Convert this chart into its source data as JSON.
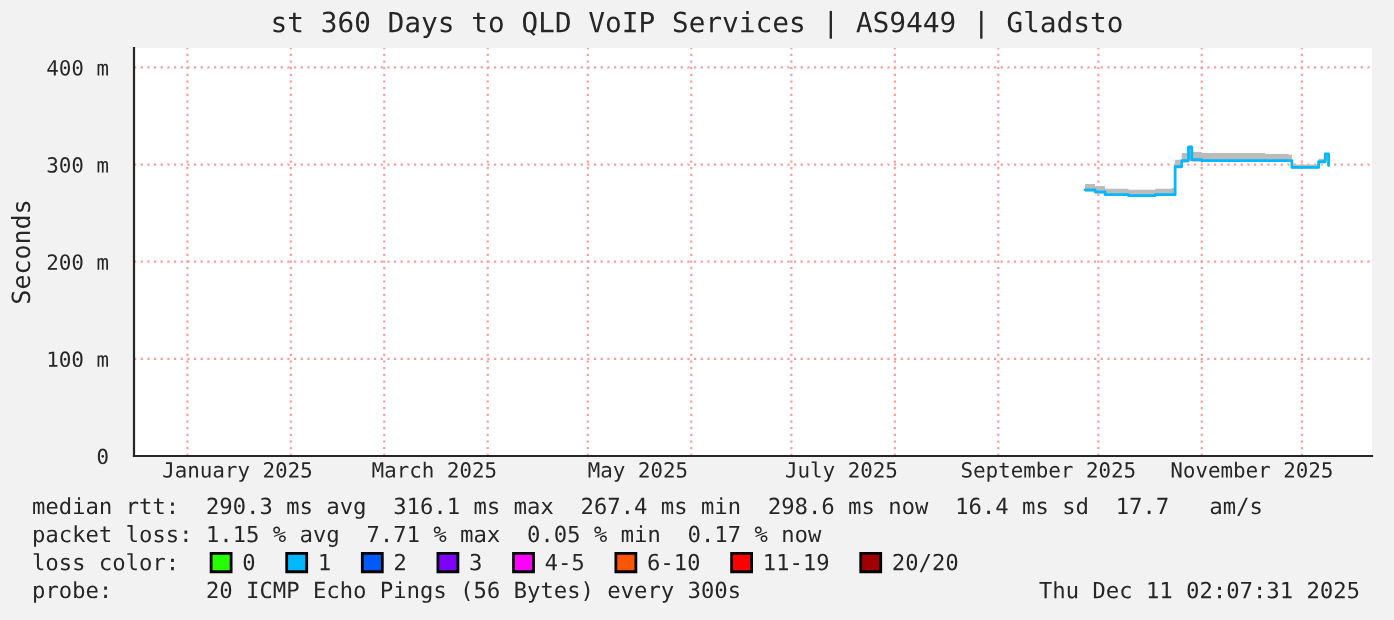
{
  "chart_data": {
    "type": "line",
    "title": "st 360 Days to QLD VoIP Services | AS9449 | Gladsto",
    "ylabel": "Seconds",
    "x": [
      "2025-09-27",
      "2025-09-30",
      "2025-10-03",
      "2025-10-10",
      "2025-10-18",
      "2025-10-23",
      "2025-10-24",
      "2025-10-26",
      "2025-10-28",
      "2025-10-29",
      "2025-11-01",
      "2025-11-10",
      "2025-11-20",
      "2025-11-27",
      "2025-11-28",
      "2025-12-05",
      "2025-12-06",
      "2025-12-08",
      "2025-12-09"
    ],
    "series": [
      {
        "name": "0",
        "color": "#26ff00",
        "values": [
          null,
          null,
          null,
          null,
          null,
          null,
          null,
          null,
          null,
          null,
          null,
          null,
          null,
          null,
          null,
          null,
          null,
          null,
          null
        ]
      },
      {
        "name": "1",
        "color": "#00b8ff",
        "values": [
          274,
          272,
          269,
          268,
          269,
          269,
          298,
          304,
          318,
          305,
          304,
          304,
          304,
          304,
          297,
          297,
          303,
          311,
          299
        ],
        "lower": [
          272,
          270,
          268,
          267,
          268,
          268,
          296,
          302,
          304,
          303,
          303,
          303,
          303,
          303,
          296,
          296,
          301,
          304,
          298
        ],
        "upper": [
          280,
          278,
          275,
          274,
          275,
          276,
          305,
          312,
          320,
          313,
          312,
          312,
          311,
          310,
          300,
          300,
          306,
          312,
          302
        ]
      },
      {
        "name": "2",
        "color": "#0059ff",
        "values": [
          null,
          null,
          null,
          null,
          null,
          null,
          null,
          null,
          null,
          null,
          null,
          null,
          null,
          null,
          null,
          null,
          null,
          null,
          null
        ]
      },
      {
        "name": "3",
        "color": "#7e00ff",
        "values": [
          null,
          null,
          null,
          null,
          null,
          null,
          null,
          null,
          null,
          null,
          null,
          null,
          null,
          null,
          null,
          null,
          null,
          null,
          null
        ]
      },
      {
        "name": "4-5",
        "color": "#ff00ff",
        "values": [
          null,
          null,
          null,
          null,
          null,
          null,
          null,
          null,
          null,
          null,
          null,
          null,
          null,
          null,
          null,
          null,
          null,
          null,
          null
        ]
      },
      {
        "name": "6-10",
        "color": "#ff5500",
        "values": [
          null,
          null,
          null,
          null,
          null,
          null,
          null,
          null,
          null,
          null,
          null,
          null,
          null,
          null,
          null,
          null,
          null,
          null,
          null
        ]
      },
      {
        "name": "11-19",
        "color": "#ff0000",
        "values": [
          null,
          null,
          null,
          null,
          null,
          null,
          null,
          null,
          null,
          null,
          null,
          null,
          null,
          null,
          null,
          null,
          null,
          null,
          null
        ]
      },
      {
        "name": "20/20",
        "color": "#a10000",
        "values": [
          null,
          null,
          null,
          null,
          null,
          null,
          null,
          null,
          null,
          null,
          null,
          null,
          null,
          null,
          null,
          null,
          null,
          null,
          null
        ]
      }
    ],
    "legend": "bottom",
    "legend_title": "loss color:",
    "xlim": [
      "2024-12-16",
      "2025-12-22"
    ],
    "xticks": [
      {
        "value": "2025-01-01",
        "label": null
      },
      {
        "value": "2025-01-16",
        "label": "January 2025"
      },
      {
        "value": "2025-02-01",
        "label": null
      },
      {
        "value": "2025-03-01",
        "label": null
      },
      {
        "value": "2025-03-16",
        "label": "March 2025"
      },
      {
        "value": "2025-04-01",
        "label": null
      },
      {
        "value": "2025-05-01",
        "label": null
      },
      {
        "value": "2025-05-16",
        "label": "May 2025"
      },
      {
        "value": "2025-06-01",
        "label": null
      },
      {
        "value": "2025-07-01",
        "label": null
      },
      {
        "value": "2025-07-16",
        "label": "July 2025"
      },
      {
        "value": "2025-08-01",
        "label": null
      },
      {
        "value": "2025-09-01",
        "label": null
      },
      {
        "value": "2025-09-16",
        "label": "September 2025"
      },
      {
        "value": "2025-10-01",
        "label": null
      },
      {
        "value": "2025-11-01",
        "label": null
      },
      {
        "value": "2025-11-16",
        "label": "November 2025"
      },
      {
        "value": "2025-12-01",
        "label": null
      }
    ],
    "ylim": [
      0,
      420
    ],
    "yticks": [
      {
        "value": 0,
        "label": "0"
      },
      {
        "value": 100,
        "label": "100 m"
      },
      {
        "value": 200,
        "label": "200 m"
      },
      {
        "value": 300,
        "label": "300 m"
      },
      {
        "value": 400,
        "label": "400 m"
      }
    ],
    "grid": true,
    "annotations": [
      "median rtt:  290.3 ms avg  316.1 ms max  267.4 ms min  298.6 ms now  16.4 ms sd  17.7   am/s",
      "packet loss: 1.15 % avg  7.71 % max  0.05 % min  0.17 % now",
      "probe:       20 ICMP Echo Pings (56 Bytes) every 300s",
      "Thu Dec 11 02:07:31 2025"
    ]
  }
}
